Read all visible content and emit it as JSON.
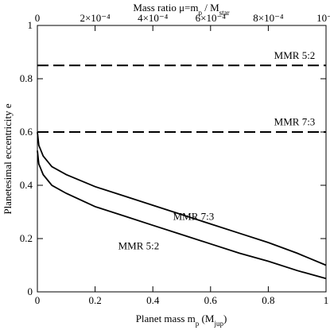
{
  "chart_data": {
    "type": "line",
    "x_label": [
      "Planet mass m",
      "p",
      " (M",
      "jup",
      ")"
    ],
    "x2_label": [
      "Mass ratio  μ=m",
      "p",
      " / M",
      "star"
    ],
    "y_label": "Planetesimal eccentricity e",
    "xlim": [
      0,
      1
    ],
    "xticks": [
      0,
      0.2,
      0.4,
      0.6,
      0.8,
      1
    ],
    "x2lim": [
      0,
      0.001
    ],
    "x2ticks": [
      0,
      {
        "value": 0.0002,
        "label": "2×10⁻⁴"
      },
      {
        "value": 0.0004,
        "label": "4×10⁻⁴"
      },
      {
        "value": 0.0006,
        "label": "6×10⁻⁴"
      },
      {
        "value": 0.0008,
        "label": "8×10⁻⁴"
      },
      {
        "value": 0.001,
        "label": "10⁻³"
      }
    ],
    "ylim": [
      0,
      1
    ],
    "yticks": [
      0,
      0.2,
      0.4,
      0.6,
      0.8,
      1
    ],
    "series": [
      {
        "name": "MMR 7:3",
        "color": "#000",
        "dashed": false,
        "x": [
          0,
          0.005,
          0.02,
          0.05,
          0.1,
          0.2,
          0.3,
          0.4,
          0.5,
          0.6,
          0.7,
          0.8,
          0.9,
          1
        ],
        "values": [
          0.6,
          0.55,
          0.51,
          0.47,
          0.44,
          0.395,
          0.36,
          0.325,
          0.29,
          0.255,
          0.22,
          0.185,
          0.145,
          0.1
        ]
      },
      {
        "name": "MMR 5:2",
        "color": "#000",
        "dashed": false,
        "x": [
          0,
          0.005,
          0.02,
          0.05,
          0.1,
          0.2,
          0.3,
          0.4,
          0.5,
          0.6,
          0.7,
          0.8,
          0.9,
          1
        ],
        "values": [
          0.53,
          0.48,
          0.44,
          0.4,
          0.37,
          0.32,
          0.285,
          0.25,
          0.215,
          0.18,
          0.145,
          0.115,
          0.08,
          0.05
        ]
      },
      {
        "name": "MMR 5:2",
        "color": "#000",
        "dashed": true,
        "x": [
          0,
          1
        ],
        "values": [
          0.85,
          0.85
        ]
      },
      {
        "name": "MMR 7:3",
        "color": "#000",
        "dashed": true,
        "x": [
          0,
          1
        ],
        "values": [
          0.6,
          0.6
        ]
      }
    ]
  }
}
